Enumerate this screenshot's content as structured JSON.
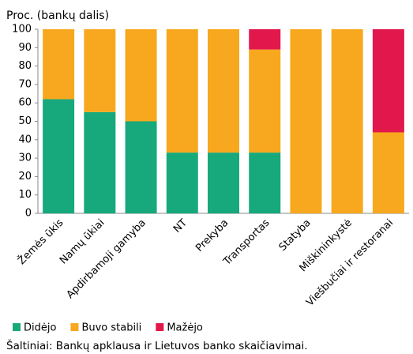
{
  "chart_data": {
    "type": "stacked_bar",
    "ylabel": "Proc. (bankų dalis)",
    "categories": [
      "Žemės ūkis",
      "Namų ūkiai",
      "Apdirbamoji gamyba",
      "NT",
      "Prekyba",
      "Transportas",
      "Statyba",
      "Miškininkystė",
      "Viešbučiai ir restoranai"
    ],
    "series": [
      {
        "name": "Didėjo",
        "color": "#17a97c",
        "values": [
          62,
          55,
          50,
          33,
          33,
          33,
          0,
          0,
          0
        ]
      },
      {
        "name": "Buvo stabili",
        "color": "#f7a81e",
        "values": [
          38,
          45,
          50,
          67,
          67,
          56,
          100,
          100,
          44
        ]
      },
      {
        "name": "Mažėjo",
        "color": "#e2184c",
        "values": [
          0,
          0,
          0,
          0,
          0,
          11,
          0,
          0,
          56
        ]
      }
    ],
    "ylim": [
      0,
      100
    ],
    "yticks": [
      0,
      10,
      20,
      30,
      40,
      50,
      60,
      70,
      80,
      90,
      100
    ],
    "source": "Šaltiniai: Bankų apklausa ir Lietuvos banko skaičiavimai."
  }
}
